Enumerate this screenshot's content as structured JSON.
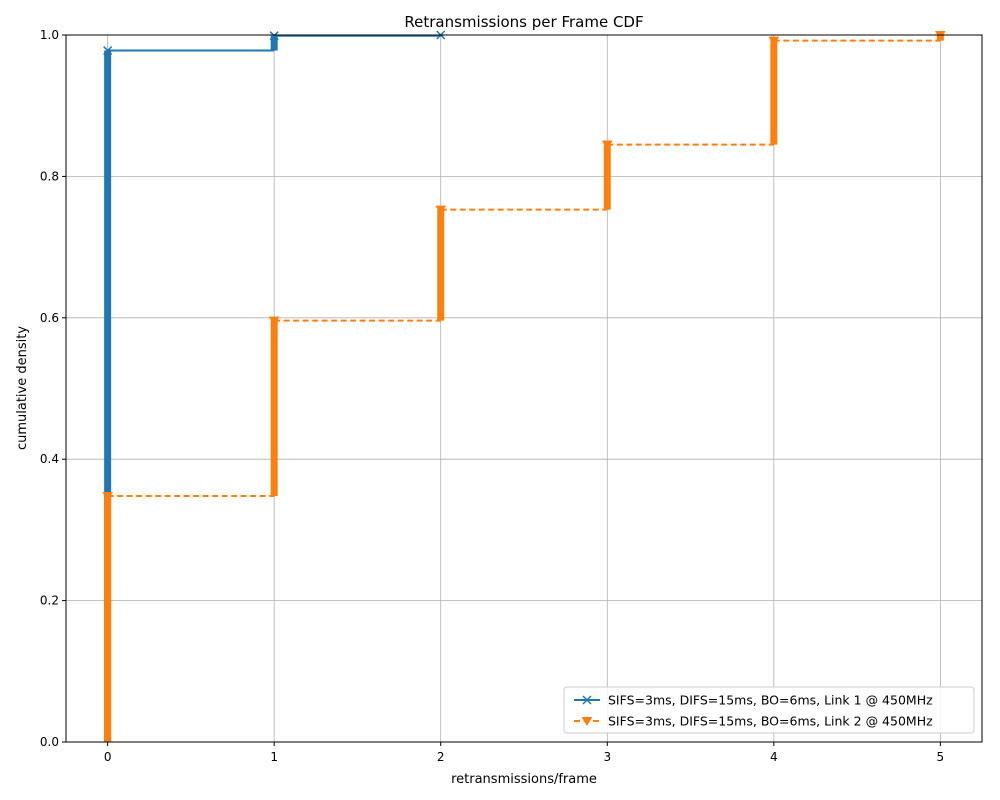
{
  "chart_data": {
    "type": "line",
    "title": "Retransmissions per Frame CDF",
    "xlabel": "retransmissions/frame",
    "ylabel": "cumulative density",
    "xlim": [
      -0.25,
      5.25
    ],
    "ylim": [
      0.0,
      1.0
    ],
    "x_ticks": [
      "0",
      "1",
      "2",
      "3",
      "4",
      "5"
    ],
    "y_ticks": [
      "0.0",
      "0.2",
      "0.4",
      "0.6",
      "0.8",
      "1.0"
    ],
    "grid": true,
    "legend_position": "lower right",
    "series": [
      {
        "name": "SIFS=3ms, DIFS=15ms, BO=6ms, Link 1 @ 450MHz",
        "color": "#1f77b4",
        "line_style": "solid",
        "marker": "x",
        "x": [
          0,
          1,
          2
        ],
        "y": [
          0.978,
          0.999,
          1.0
        ]
      },
      {
        "name": "SIFS=3ms, DIFS=15ms, BO=6ms, Link 2 @ 450MHz",
        "color": "#ff7f0e",
        "line_style": "dashed",
        "marker": "triangle-down",
        "x": [
          0,
          1,
          2,
          3,
          4,
          5
        ],
        "y": [
          0.348,
          0.596,
          0.753,
          0.845,
          0.992,
          1.0
        ]
      }
    ]
  }
}
